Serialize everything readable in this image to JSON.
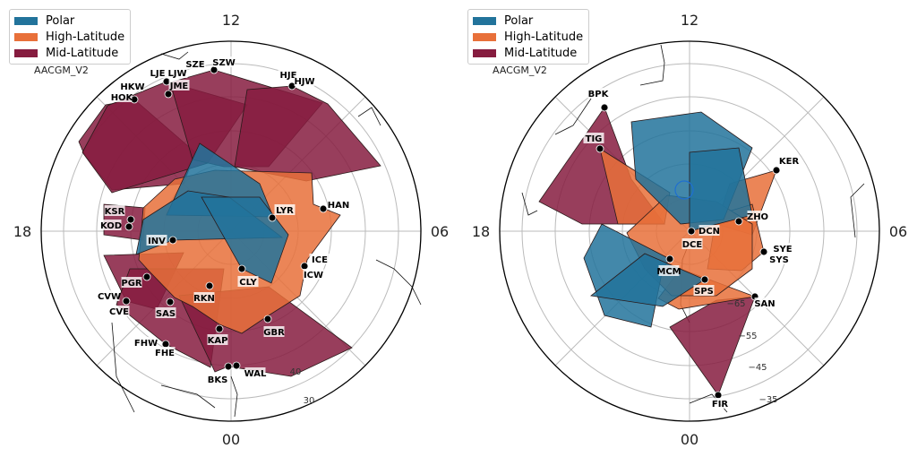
{
  "legend": [
    {
      "label": "Polar",
      "color": "#22739b"
    },
    {
      "label": "High-Latitude",
      "color": "#e8703a"
    },
    {
      "label": "Mid-Latitude",
      "color": "#861c3f"
    }
  ],
  "panels": [
    {
      "hemisphere": "north",
      "coordinate_system": "AACGM_V2",
      "mlt_labels": {
        "top": "12",
        "left": "18",
        "right": "06",
        "bottom": "00"
      },
      "latitude_labels": [
        "40",
        "30"
      ],
      "stations": [
        {
          "code": "SZE",
          "category": "Mid-Latitude"
        },
        {
          "code": "SZW",
          "category": "Mid-Latitude"
        },
        {
          "code": "LJE",
          "category": "Mid-Latitude"
        },
        {
          "code": "LJW",
          "category": "Mid-Latitude"
        },
        {
          "code": "JME",
          "category": "Mid-Latitude"
        },
        {
          "code": "HKW",
          "category": "Mid-Latitude"
        },
        {
          "code": "HOK",
          "category": "Mid-Latitude"
        },
        {
          "code": "HJE",
          "category": "Mid-Latitude"
        },
        {
          "code": "HJW",
          "category": "Mid-Latitude"
        },
        {
          "code": "HAN",
          "category": "High-Latitude"
        },
        {
          "code": "LYR",
          "category": "High-Latitude"
        },
        {
          "code": "KSR",
          "category": "Mid-Latitude"
        },
        {
          "code": "KOD",
          "category": "High-Latitude"
        },
        {
          "code": "INV",
          "category": "Polar"
        },
        {
          "code": "CLY",
          "category": "Polar"
        },
        {
          "code": "ICE",
          "category": "High-Latitude"
        },
        {
          "code": "ICW",
          "category": "High-Latitude"
        },
        {
          "code": "PGR",
          "category": "High-Latitude"
        },
        {
          "code": "CVW",
          "category": "Mid-Latitude"
        },
        {
          "code": "CVE",
          "category": "Mid-Latitude"
        },
        {
          "code": "SAS",
          "category": "High-Latitude"
        },
        {
          "code": "RKN",
          "category": "Polar"
        },
        {
          "code": "KAP",
          "category": "High-Latitude"
        },
        {
          "code": "GBR",
          "category": "High-Latitude"
        },
        {
          "code": "FHW",
          "category": "Mid-Latitude"
        },
        {
          "code": "FHE",
          "category": "Mid-Latitude"
        },
        {
          "code": "BKS",
          "category": "Mid-Latitude"
        },
        {
          "code": "WAL",
          "category": "Mid-Latitude"
        }
      ]
    },
    {
      "hemisphere": "south",
      "coordinate_system": "AACGM_V2",
      "mlt_labels": {
        "top": "12",
        "left": "18",
        "right": "06",
        "bottom": "00"
      },
      "latitude_labels": [
        "−65",
        "−55",
        "−45",
        "−35"
      ],
      "stations": [
        {
          "code": "BPK",
          "category": "Mid-Latitude"
        },
        {
          "code": "TIG",
          "category": "High-Latitude"
        },
        {
          "code": "KER",
          "category": "High-Latitude"
        },
        {
          "code": "ZHO",
          "category": "Polar"
        },
        {
          "code": "DCN",
          "category": "Polar"
        },
        {
          "code": "DCE",
          "category": "Polar"
        },
        {
          "code": "MCM",
          "category": "Polar"
        },
        {
          "code": "SYE",
          "category": "High-Latitude"
        },
        {
          "code": "SYS",
          "category": "High-Latitude"
        },
        {
          "code": "SPS",
          "category": "Polar"
        },
        {
          "code": "SAN",
          "category": "High-Latitude"
        },
        {
          "code": "FIR",
          "category": "Mid-Latitude"
        }
      ]
    }
  ]
}
